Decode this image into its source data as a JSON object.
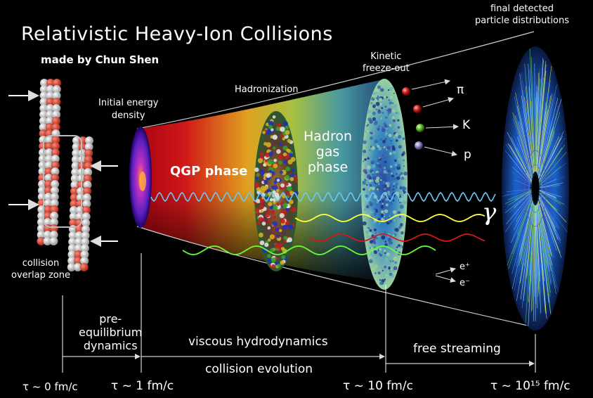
{
  "title": "Relativistic Heavy-Ion Collisions",
  "author": "made by Chun Shen",
  "labels": {
    "final_line1": "final detected",
    "final_line2": "particle distributions",
    "kinetic_line1": "Kinetic",
    "kinetic_line2": "freeze-out",
    "hadronization": "Hadronization",
    "initial_line1": "Initial energy",
    "initial_line2": "density",
    "qgp_phase": "QGP phase",
    "hadron_line1": "Hadron",
    "hadron_line2": "gas",
    "hadron_line3": "phase",
    "pion": "π",
    "kaon": "K",
    "proton": "p",
    "photon": "γ",
    "electron_plus": "e⁺",
    "electron_minus": "e⁻",
    "collision_line1": "collision",
    "collision_line2": "overlap zone"
  },
  "timeline": {
    "preeq_line1": "pre-",
    "preeq_line2": "equilibrium",
    "preeq_line3": "dynamics",
    "viscous": "viscous hydrodynamics",
    "free_streaming": "free streaming",
    "evolution": "collision evolution",
    "t0": "τ ~ 0 fm/c",
    "t1": "τ ~ 1 fm/c",
    "t10": "τ ~ 10 fm/c",
    "t15": "τ ~ 10¹⁵ fm/c"
  },
  "colors": {
    "background": "#000000",
    "photon_wave": "#6cc6ee",
    "yellow_wave": "#ffff40",
    "red_wave": "#d81818",
    "green_wave": "#66ff33",
    "pion_ball": "#c01818",
    "kaon_ball": "#5fb02a",
    "proton_ball": "#8080b8"
  }
}
